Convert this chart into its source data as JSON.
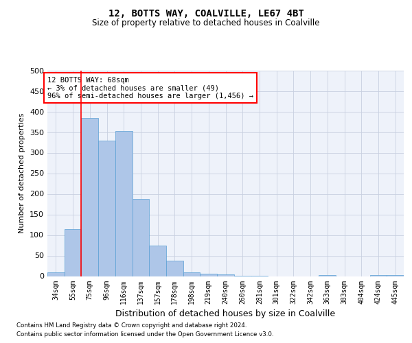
{
  "title": "12, BOTTS WAY, COALVILLE, LE67 4BT",
  "subtitle": "Size of property relative to detached houses in Coalville",
  "xlabel": "Distribution of detached houses by size in Coalville",
  "ylabel": "Number of detached properties",
  "footnote1": "Contains HM Land Registry data © Crown copyright and database right 2024.",
  "footnote2": "Contains public sector information licensed under the Open Government Licence v3.0.",
  "categories": [
    "34sqm",
    "55sqm",
    "75sqm",
    "96sqm",
    "116sqm",
    "137sqm",
    "157sqm",
    "178sqm",
    "198sqm",
    "219sqm",
    "240sqm",
    "260sqm",
    "281sqm",
    "301sqm",
    "322sqm",
    "342sqm",
    "363sqm",
    "383sqm",
    "404sqm",
    "424sqm",
    "445sqm"
  ],
  "values": [
    10,
    115,
    385,
    330,
    352,
    188,
    74,
    37,
    10,
    6,
    4,
    1,
    1,
    0,
    0,
    0,
    3,
    0,
    0,
    3,
    3
  ],
  "ylim": [
    0,
    500
  ],
  "yticks": [
    0,
    50,
    100,
    150,
    200,
    250,
    300,
    350,
    400,
    450,
    500
  ],
  "bar_color": "#aec6e8",
  "bar_edge_color": "#5a9fd4",
  "vline_x": 1.5,
  "vline_color": "red",
  "annotation_text": "12 BOTTS WAY: 68sqm\n← 3% of detached houses are smaller (49)\n96% of semi-detached houses are larger (1,456) →",
  "annotation_box_color": "white",
  "annotation_box_edge": "red",
  "grid_color": "#c8d0e0",
  "background_color": "#eef2fa",
  "fig_background": "#ffffff"
}
